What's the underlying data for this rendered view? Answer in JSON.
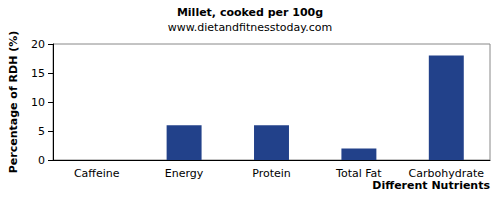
{
  "chart_data": {
    "type": "bar",
    "title": "Millet, cooked per 100g",
    "subtitle": "www.dietandfitnesstoday.com",
    "x_label": "Different Nutrients",
    "y_label": "Percentage of RDH (%)",
    "categories": [
      "Caffeine",
      "Energy",
      "Protein",
      "Total Fat",
      "Carbohydrate"
    ],
    "values": [
      0,
      6,
      6,
      2,
      18
    ],
    "color": "#22418a",
    "ylim": [
      0,
      20
    ],
    "yticks": [
      0,
      5,
      10,
      15,
      20
    ],
    "grid": false
  }
}
